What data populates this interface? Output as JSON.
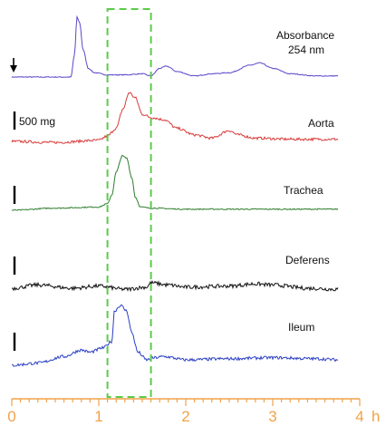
{
  "chart_data": {
    "type": "line",
    "xlim": [
      0,
      4
    ],
    "x_unit": "h",
    "x_ticks": [
      "0",
      "1",
      "2",
      "3",
      "4"
    ],
    "scale_bar_label": "500 mg",
    "axis_color": "#F0A24A",
    "highlight_window": {
      "x_start": 1.1,
      "x_end": 1.6,
      "color": "#5CCB4A"
    },
    "series": [
      {
        "name": "Absorbance 254 nm",
        "label_lines": [
          "Absorbance",
          "254 nm"
        ],
        "color": "#5B46C8",
        "noise": 0.4,
        "points": [
          [
            0.0,
            0
          ],
          [
            0.68,
            0
          ],
          [
            0.72,
            20
          ],
          [
            0.75,
            55
          ],
          [
            0.78,
            50
          ],
          [
            0.82,
            25
          ],
          [
            0.88,
            8
          ],
          [
            0.95,
            4
          ],
          [
            1.1,
            2
          ],
          [
            1.3,
            2
          ],
          [
            1.5,
            3
          ],
          [
            1.6,
            1
          ],
          [
            1.7,
            8
          ],
          [
            1.78,
            10
          ],
          [
            1.9,
            5
          ],
          [
            2.1,
            1
          ],
          [
            2.3,
            3
          ],
          [
            2.5,
            4
          ],
          [
            2.75,
            11
          ],
          [
            2.85,
            13
          ],
          [
            3.0,
            8
          ],
          [
            3.2,
            3
          ],
          [
            3.5,
            1
          ],
          [
            3.75,
            1
          ]
        ]
      },
      {
        "name": "Aorta",
        "label_lines": [
          "Aorta"
        ],
        "color": "#D93A3A",
        "noise": 1.2,
        "points": [
          [
            0.0,
            0
          ],
          [
            0.5,
            -1
          ],
          [
            1.0,
            1
          ],
          [
            1.1,
            5
          ],
          [
            1.2,
            12
          ],
          [
            1.28,
            30
          ],
          [
            1.35,
            45
          ],
          [
            1.42,
            40
          ],
          [
            1.5,
            25
          ],
          [
            1.6,
            22
          ],
          [
            1.75,
            20
          ],
          [
            1.9,
            12
          ],
          [
            2.1,
            6
          ],
          [
            2.3,
            3
          ],
          [
            2.5,
            10
          ],
          [
            2.6,
            6
          ],
          [
            2.8,
            3
          ],
          [
            3.2,
            2
          ],
          [
            3.75,
            2
          ]
        ]
      },
      {
        "name": "Trachea",
        "label_lines": [
          "Trachea"
        ],
        "color": "#2E7D2E",
        "noise": 0.5,
        "points": [
          [
            0.0,
            0
          ],
          [
            0.5,
            2
          ],
          [
            1.0,
            3
          ],
          [
            1.1,
            6
          ],
          [
            1.15,
            14
          ],
          [
            1.2,
            35
          ],
          [
            1.27,
            50
          ],
          [
            1.32,
            48
          ],
          [
            1.38,
            30
          ],
          [
            1.42,
            12
          ],
          [
            1.48,
            3
          ],
          [
            1.6,
            2
          ],
          [
            2.0,
            1
          ],
          [
            3.0,
            1
          ],
          [
            3.75,
            1
          ]
        ]
      },
      {
        "name": "Deferens",
        "label_lines": [
          "Deferens"
        ],
        "color": "#111111",
        "noise": 1.8,
        "points": [
          [
            0.0,
            0
          ],
          [
            0.3,
            3
          ],
          [
            0.7,
            0
          ],
          [
            1.0,
            2
          ],
          [
            1.3,
            -1
          ],
          [
            1.55,
            1
          ],
          [
            1.6,
            5
          ],
          [
            1.8,
            3
          ],
          [
            2.0,
            1
          ],
          [
            2.5,
            2
          ],
          [
            2.8,
            4
          ],
          [
            3.0,
            3
          ],
          [
            3.4,
            0
          ],
          [
            3.75,
            -1
          ]
        ]
      },
      {
        "name": "Ileum",
        "label_lines": [
          "Ileum"
        ],
        "color": "#2A3FC4",
        "noise": 1.4,
        "points": [
          [
            0.0,
            0
          ],
          [
            0.3,
            2
          ],
          [
            0.6,
            8
          ],
          [
            0.8,
            14
          ],
          [
            0.9,
            12
          ],
          [
            1.05,
            16
          ],
          [
            1.15,
            22
          ],
          [
            1.18,
            50
          ],
          [
            1.25,
            55
          ],
          [
            1.32,
            50
          ],
          [
            1.38,
            30
          ],
          [
            1.45,
            12
          ],
          [
            1.55,
            5
          ],
          [
            1.65,
            7
          ],
          [
            1.75,
            8
          ],
          [
            2.0,
            5
          ],
          [
            2.5,
            6
          ],
          [
            3.0,
            7
          ],
          [
            3.5,
            6
          ],
          [
            3.75,
            5
          ]
        ]
      }
    ]
  }
}
